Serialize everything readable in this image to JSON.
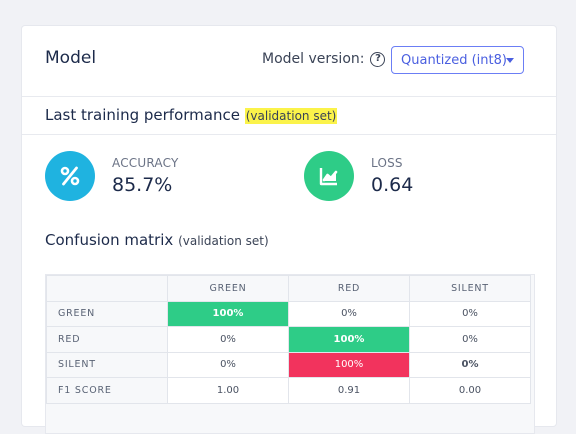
{
  "header": {
    "title": "Model",
    "version_label": "Model version:",
    "help_icon": "?",
    "version_selected": "Quantized (int8)"
  },
  "performance": {
    "title": "Last training performance",
    "subtitle": "(validation set)",
    "accuracy": {
      "label": "ACCURACY",
      "value": "85.7%",
      "icon": "percent-icon",
      "color": "#1fb3e0"
    },
    "loss": {
      "label": "LOSS",
      "value": "0.64",
      "icon": "chart-trend-icon",
      "color": "#2ecc87"
    }
  },
  "confusion": {
    "title": "Confusion matrix",
    "subtitle": "(validation set)",
    "columns": [
      "GREEN",
      "RED",
      "SILENT"
    ],
    "rows": [
      {
        "label": "GREEN",
        "cells": [
          "100%",
          "0%",
          "0%"
        ]
      },
      {
        "label": "RED",
        "cells": [
          "0%",
          "100%",
          "0%"
        ]
      },
      {
        "label": "SILENT",
        "cells": [
          "0%",
          "100%",
          "0%"
        ]
      },
      {
        "label": "F1 SCORE",
        "cells": [
          "1.00",
          "0.91",
          "0.00"
        ]
      }
    ],
    "colors": {
      "correct": "#2ecc87",
      "wrong": "#f2335d"
    }
  }
}
